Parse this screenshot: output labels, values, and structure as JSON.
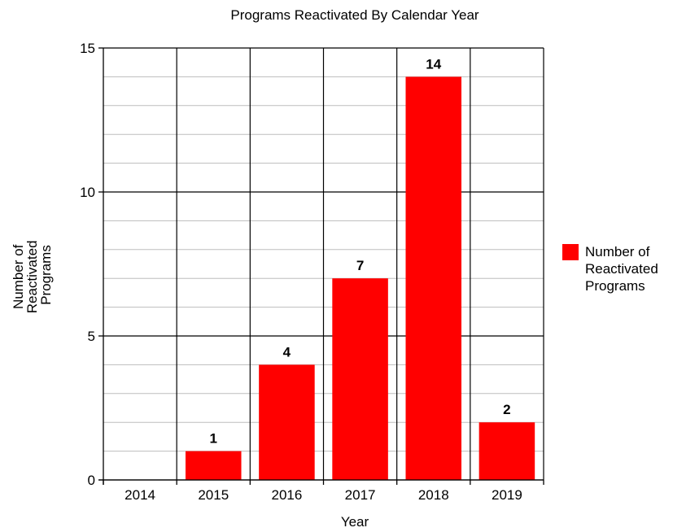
{
  "chart_data": {
    "type": "bar",
    "title": "Programs Reactivated By Calendar Year",
    "xlabel": "Year",
    "ylabel": [
      "Number of",
      "Reactivated",
      "Programs"
    ],
    "categories": [
      "2014",
      "2015",
      "2016",
      "2017",
      "2018",
      "2019"
    ],
    "series": [
      {
        "name": [
          "Number of",
          "Reactivated",
          "Programs"
        ],
        "values": [
          0,
          1,
          4,
          7,
          14,
          2
        ],
        "color": "#ff0000"
      }
    ],
    "data_labels": [
      "",
      "1",
      "4",
      "7",
      "14",
      "2"
    ],
    "ylim": [
      0,
      15
    ],
    "yticks": [
      0,
      5,
      10,
      15
    ],
    "ytick_labels": [
      "0",
      "5",
      "10",
      "15"
    ],
    "minor_grid_step": 1,
    "grid": true,
    "legend_position": "right"
  }
}
